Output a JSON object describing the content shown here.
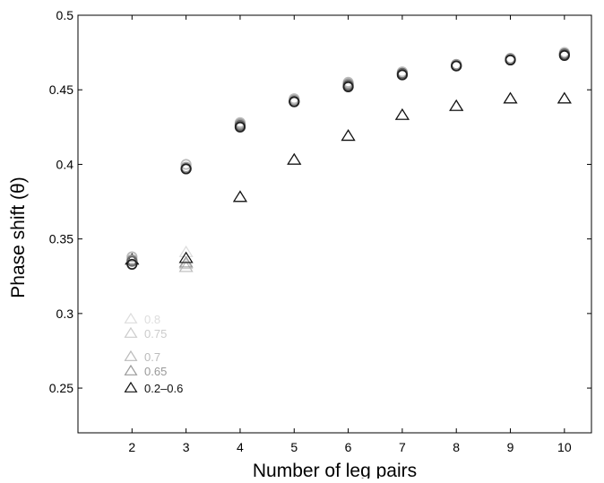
{
  "chart_data": {
    "type": "scatter",
    "title": "",
    "xlabel": "Number of leg pairs",
    "ylabel": "Phase shift (θ)",
    "xlim": [
      1,
      10.5
    ],
    "ylim": [
      0.22,
      0.5
    ],
    "xticks": [
      2,
      3,
      4,
      5,
      6,
      7,
      8,
      9,
      10
    ],
    "yticks": [
      0.25,
      0.3,
      0.35,
      0.4,
      0.45,
      0.5
    ],
    "ytick_labels": [
      "0.25",
      "0.3",
      "0.35",
      "0.4",
      "0.45",
      "0.5"
    ],
    "grid": false,
    "legend_position": "lower-left",
    "legend_marker": "triangle",
    "series": [
      {
        "name": "0.8",
        "marker": "triangle",
        "color": "#dddddd",
        "x": [
          2,
          3,
          4,
          5,
          6,
          7,
          8,
          9,
          10
        ],
        "y": [
          0.336,
          0.341,
          0.378,
          0.403,
          0.419,
          0.433,
          0.439,
          0.444,
          0.444
        ]
      },
      {
        "name": "0.75",
        "marker": "triangle",
        "color": "#cccccc",
        "x": [
          2,
          3,
          4,
          5,
          6,
          7,
          8,
          9,
          10
        ],
        "y": [
          0.336,
          0.333,
          0.378,
          0.403,
          0.419,
          0.433,
          0.439,
          0.444,
          0.444
        ]
      },
      {
        "name": "0.7",
        "marker": "triangle",
        "color": "#bbbbbb",
        "x": [
          2,
          3,
          4,
          5,
          6,
          7,
          8,
          9,
          10
        ],
        "y": [
          0.336,
          0.331,
          0.378,
          0.403,
          0.419,
          0.433,
          0.439,
          0.444,
          0.444
        ]
      },
      {
        "name": "0.65",
        "marker": "triangle",
        "color": "#999999",
        "x": [
          2,
          3,
          4,
          5,
          6,
          7,
          8,
          9,
          10
        ],
        "y": [
          0.336,
          0.334,
          0.378,
          0.403,
          0.419,
          0.433,
          0.439,
          0.444,
          0.444
        ]
      },
      {
        "name": "0.2–0.6",
        "marker": "triangle",
        "color": "#111111",
        "x": [
          2,
          3,
          4,
          5,
          6,
          7,
          8,
          9,
          10
        ],
        "y": [
          0.336,
          0.337,
          0.378,
          0.403,
          0.419,
          0.433,
          0.439,
          0.444,
          0.444
        ]
      },
      {
        "name": "",
        "marker": "circle",
        "color": "#bbbbbb",
        "x": [
          2,
          3,
          4,
          5,
          6,
          7,
          8,
          9,
          10
        ],
        "y": [
          0.338,
          0.4,
          0.428,
          0.444,
          0.455,
          0.462,
          0.467,
          0.471,
          0.475
        ]
      },
      {
        "name": "",
        "marker": "circle",
        "color": "#999999",
        "x": [
          2,
          3,
          4,
          5,
          6,
          7,
          8,
          9,
          10
        ],
        "y": [
          0.336,
          0.398,
          0.427,
          0.443,
          0.454,
          0.461,
          0.467,
          0.471,
          0.474
        ]
      },
      {
        "name": "",
        "marker": "circle",
        "color": "#666666",
        "x": [
          2,
          3,
          4,
          5,
          6,
          7,
          8,
          9,
          10
        ],
        "y": [
          0.335,
          0.397,
          0.426,
          0.442,
          0.453,
          0.461,
          0.466,
          0.47,
          0.474
        ]
      },
      {
        "name": "",
        "marker": "circle",
        "color": "#222222",
        "x": [
          2,
          3,
          4,
          5,
          6,
          7,
          8,
          9,
          10
        ],
        "y": [
          0.333,
          0.397,
          0.425,
          0.442,
          0.452,
          0.46,
          0.466,
          0.47,
          0.473
        ]
      }
    ]
  }
}
